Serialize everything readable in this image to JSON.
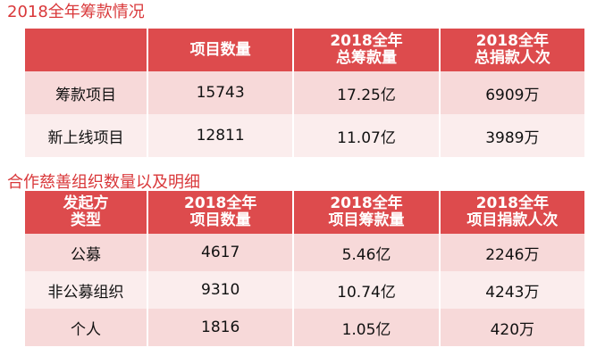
{
  "section1": {
    "title": "2018全年筹款情况",
    "headers": [
      "",
      "项目数量",
      "2018全年\n总筹款量",
      "2018全年\n总捐款人次"
    ],
    "rows": [
      [
        "筹款项目",
        "15743",
        "17.25亿",
        "6909万"
      ],
      [
        "新上线项目",
        "12811",
        "11.07亿",
        "3989万"
      ]
    ]
  },
  "section2": {
    "title": "合作慈善组织数量以及明细",
    "headers": [
      "发起方\n类型",
      "2018全年\n项目数量",
      "2018全年\n项目筹款量",
      "2018全年\n项目捐款人次"
    ],
    "rows": [
      [
        "公募",
        "4617",
        "5.46亿",
        "2246万"
      ],
      [
        "非公募组织",
        "9310",
        "10.74亿",
        "4243万"
      ],
      [
        "个人",
        "1816",
        "1.05亿",
        "420万"
      ]
    ]
  },
  "colors": {
    "title": "#d9383a",
    "header_bg": "#dd4b4d",
    "row_dark": "#f7d9d9",
    "row_light": "#fbeded"
  }
}
